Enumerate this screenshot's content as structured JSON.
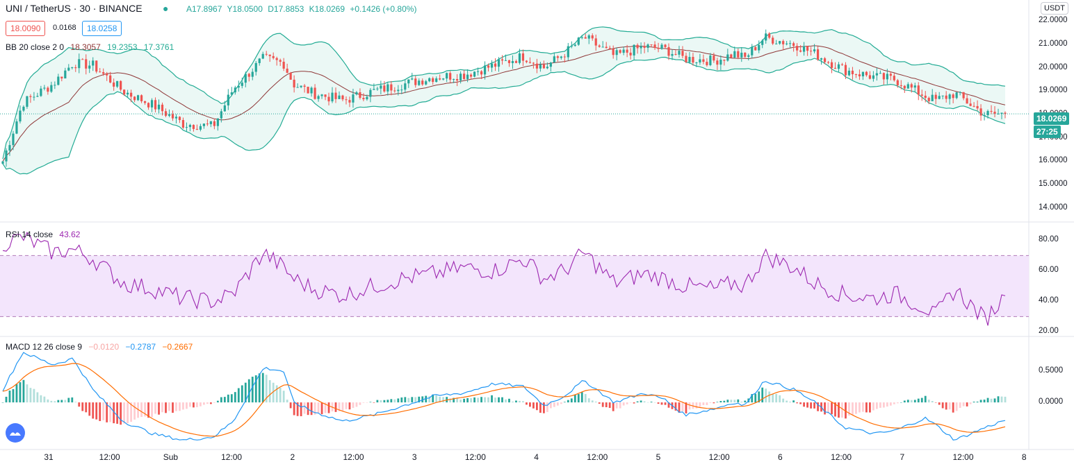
{
  "header": {
    "symbol": "UNI / TetherUS · 30 · BINANCE",
    "ohlc": {
      "open": "A17.8967",
      "high": "Y18.0500",
      "low": "D17.8853",
      "close": "K18.0269",
      "change": "+0.1426 (+0.80%)"
    },
    "bid": "18.0090",
    "spread": "0.0168",
    "ask": "18.0258"
  },
  "legends": {
    "bb": {
      "name": "BB 20 close 2 0",
      "basis": "18.3057",
      "upper": "19.2353",
      "lower": "17.3761"
    },
    "rsi": {
      "name": "RSI 14 close",
      "value": "43.62"
    },
    "macd": {
      "name": "MACD 12 26 close 9",
      "hist": "−0.0120",
      "macd": "−0.2787",
      "signal": "−0.2667"
    }
  },
  "price_axis": {
    "currency": "USDT",
    "ticks": [
      "22.0000",
      "21.0000",
      "20.0000",
      "19.0000",
      "18.0000",
      "17.0000",
      "16.0000",
      "15.0000",
      "14.0000"
    ],
    "last_price": "18.0269",
    "countdown": "27:25"
  },
  "rsi_axis": {
    "ticks": [
      "80.00",
      "60.00",
      "40.00",
      "20.00"
    ]
  },
  "macd_axis": {
    "ticks": [
      "0.5000",
      "0.0000"
    ]
  },
  "time_axis": [
    "31",
    "12:00",
    "Sub",
    "12:00",
    "2",
    "12:00",
    "3",
    "12:00",
    "4",
    "12:00",
    "5",
    "12:00",
    "6",
    "12:00",
    "7",
    "12:00",
    "8"
  ],
  "colors": {
    "up": "#26a69a",
    "down": "#ef5350",
    "bb_band": "#22ab94",
    "bb_basis": "#8f3838",
    "bb_fill": "#e6f6f3",
    "rsi_line": "#9c27b0",
    "rsi_bg": "#f3e5fc",
    "macd": "#2196f3",
    "signal": "#ff6d00"
  },
  "chart_data": [
    {
      "type": "candlestick",
      "title": "UNI / TetherUS · 30 · BINANCE",
      "ylim": [
        13.7,
        22.6
      ],
      "anchors_x": [
        0,
        0.02,
        0.05,
        0.07,
        0.09,
        0.12,
        0.15,
        0.18,
        0.21,
        0.23,
        0.26,
        0.28,
        0.29,
        0.31,
        0.34,
        0.37,
        0.4,
        0.43,
        0.46,
        0.49,
        0.52,
        0.54,
        0.56,
        0.58,
        0.61,
        0.64,
        0.66,
        0.68,
        0.71,
        0.73,
        0.74,
        0.76,
        0.79,
        0.81,
        0.84,
        0.87,
        0.89,
        0.92,
        0.93,
        0.95,
        0.98,
        1.0
      ],
      "close_anchors": [
        16.0,
        18.5,
        19.3,
        20.2,
        20.1,
        19.0,
        18.4,
        17.6,
        17.5,
        19.1,
        20.4,
        20.2,
        19.3,
        18.9,
        18.6,
        19.0,
        19.3,
        19.6,
        19.7,
        20.1,
        20.5,
        20.0,
        20.6,
        21.3,
        20.5,
        20.9,
        20.8,
        20.4,
        20.3,
        20.6,
        20.4,
        21.3,
        21.0,
        20.6,
        19.9,
        19.6,
        19.5,
        18.8,
        18.6,
        18.9,
        18.0,
        18.03
      ],
      "bb": {
        "basis": "18.3057",
        "upper": "19.2353",
        "lower": "17.3761"
      }
    },
    {
      "type": "line",
      "name": "RSI 14 close",
      "ylim": [
        17,
        92
      ],
      "last": 43.62,
      "bands": [
        30,
        70
      ],
      "anchors": [
        78,
        82,
        72,
        74,
        68,
        52,
        48,
        42,
        40,
        45,
        72,
        62,
        55,
        48,
        44,
        50,
        55,
        58,
        62,
        60,
        68,
        55,
        60,
        72,
        52,
        58,
        55,
        50,
        48,
        52,
        50,
        70,
        62,
        52,
        44,
        42,
        45,
        36,
        30,
        48,
        28,
        43.62
      ]
    },
    {
      "type": "line",
      "name": "MACD 12 26 close 9",
      "ylim": [
        -0.75,
        1.05
      ],
      "macd_anchors": [
        0.2,
        0.8,
        0.6,
        0.7,
        0.2,
        -0.3,
        -0.5,
        -0.6,
        -0.55,
        -0.3,
        0.55,
        0.5,
        0.0,
        -0.15,
        -0.3,
        -0.2,
        -0.05,
        0.1,
        0.15,
        0.3,
        0.25,
        -0.05,
        0.1,
        0.35,
        0.0,
        0.15,
        0.05,
        -0.2,
        -0.1,
        0.0,
        -0.05,
        0.35,
        0.2,
        0.0,
        -0.4,
        -0.5,
        -0.45,
        -0.25,
        -0.35,
        -0.6,
        -0.4,
        -0.28
      ],
      "last_hist": -0.012,
      "last_macd": -0.2787,
      "last_signal": -0.2667
    }
  ]
}
